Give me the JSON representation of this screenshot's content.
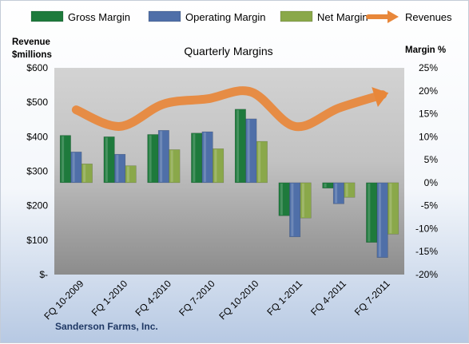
{
  "chart_data": {
    "type": "bar",
    "title": "Quarterly Margins",
    "footer": "Sanderson Farms, Inc.",
    "categories": [
      "FQ 10-2009",
      "FQ 1-2010",
      "FQ 4-2010",
      "FQ 7-2010",
      "FQ 10-2010",
      "FQ 1-2011",
      "FQ 4-2011",
      "FQ 7-2011"
    ],
    "left_axis": {
      "title_line1": "Revenue",
      "title_line2": "$millions",
      "ylim": [
        0,
        600
      ],
      "tick_values": [
        0,
        100,
        200,
        300,
        400,
        500,
        600
      ],
      "tick_labels": [
        "$-",
        "$100",
        "$200",
        "$300",
        "$400",
        "$500",
        "$600"
      ]
    },
    "right_axis": {
      "title": "Margin %",
      "ylim": [
        -20,
        25
      ],
      "tick_values": [
        -20,
        -15,
        -10,
        -5,
        0,
        5,
        10,
        15,
        20,
        25
      ],
      "tick_labels": [
        "-20%",
        "-15%",
        "-10%",
        "-5%",
        "0%",
        "5%",
        "10%",
        "15%",
        "20%",
        "25%"
      ]
    },
    "series": [
      {
        "name": "Gross Margin",
        "kind": "bar",
        "axis": "right",
        "color": "#1e7a3c",
        "values": [
          10.3,
          10.0,
          10.5,
          10.8,
          16.0,
          -7.2,
          -1.2,
          -13.0
        ]
      },
      {
        "name": "Operating Margin",
        "kind": "bar",
        "axis": "right",
        "color": "#4f6fa8",
        "values": [
          6.7,
          6.2,
          11.4,
          11.1,
          13.9,
          -11.8,
          -4.6,
          -16.3
        ]
      },
      {
        "name": "Net Margin",
        "kind": "bar",
        "axis": "right",
        "color": "#8aa84a",
        "values": [
          4.1,
          3.7,
          7.2,
          7.4,
          9.0,
          -7.7,
          -3.2,
          -11.2
        ]
      },
      {
        "name": "Revenues",
        "kind": "line",
        "axis": "left",
        "color": "#e8873a",
        "values": [
          478,
          430,
          495,
          510,
          530,
          430,
          483,
          522
        ]
      }
    ],
    "legend_position": "top",
    "grid": false
  }
}
